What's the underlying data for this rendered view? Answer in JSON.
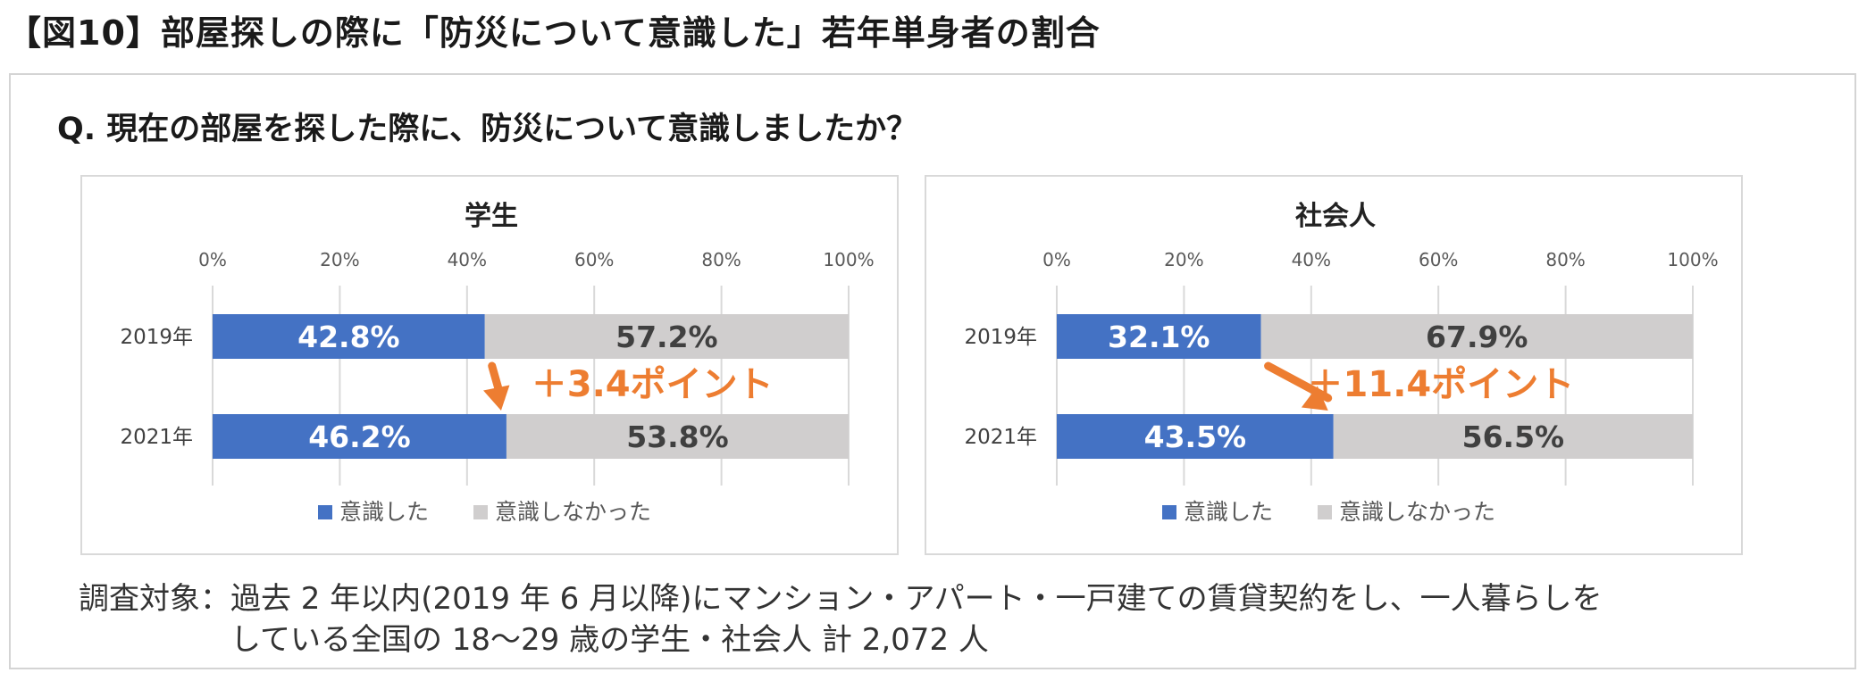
{
  "figure_title": "【図10】部屋探しの際に「防災について意識した」若年単身者の割合",
  "question": "Q. 現在の部屋を探した際に、防災について意識しましたか？",
  "colors": {
    "aware": "#4472c4",
    "not_aware": "#d0cece",
    "accent": "#ed7d31",
    "grid": "#d9d9d9"
  },
  "chart_data": [
    {
      "type": "bar",
      "orientation": "horizontal",
      "stacked": true,
      "title": "学生",
      "categories": [
        "2019年",
        "2021年"
      ],
      "series": [
        {
          "name": "意識した",
          "values": [
            42.8,
            46.2
          ],
          "labels": [
            "42.8%",
            "46.2%"
          ]
        },
        {
          "name": "意識しなかった",
          "values": [
            57.2,
            53.8
          ],
          "labels": [
            "57.2%",
            "53.8%"
          ]
        }
      ],
      "xlim": [
        0,
        100
      ],
      "xticks": [
        "0%",
        "20%",
        "40%",
        "60%",
        "80%",
        "100%"
      ],
      "xtick_values": [
        0,
        20,
        40,
        60,
        80,
        100
      ],
      "grid": true,
      "legend_position": "bottom",
      "annotation": "＋3.4ポイント"
    },
    {
      "type": "bar",
      "orientation": "horizontal",
      "stacked": true,
      "title": "社会人",
      "categories": [
        "2019年",
        "2021年"
      ],
      "series": [
        {
          "name": "意識した",
          "values": [
            32.1,
            43.5
          ],
          "labels": [
            "32.1%",
            "43.5%"
          ]
        },
        {
          "name": "意識しなかった",
          "values": [
            67.9,
            56.5
          ],
          "labels": [
            "67.9%",
            "56.5%"
          ]
        }
      ],
      "xlim": [
        0,
        100
      ],
      "xticks": [
        "0%",
        "20%",
        "40%",
        "60%",
        "80%",
        "100%"
      ],
      "xtick_values": [
        0,
        20,
        40,
        60,
        80,
        100
      ],
      "grid": true,
      "legend_position": "bottom",
      "annotation": "＋11.4ポイント"
    }
  ],
  "note": {
    "label": "調査対象：",
    "line1": "過去 2 年以内(2019 年 6 月以降)にマンション・アパート・一戸建ての賃貸契約をし、一人暮らしを",
    "line2": "している全国の 18〜29 歳の学生・社会人 計 2,072 人"
  }
}
